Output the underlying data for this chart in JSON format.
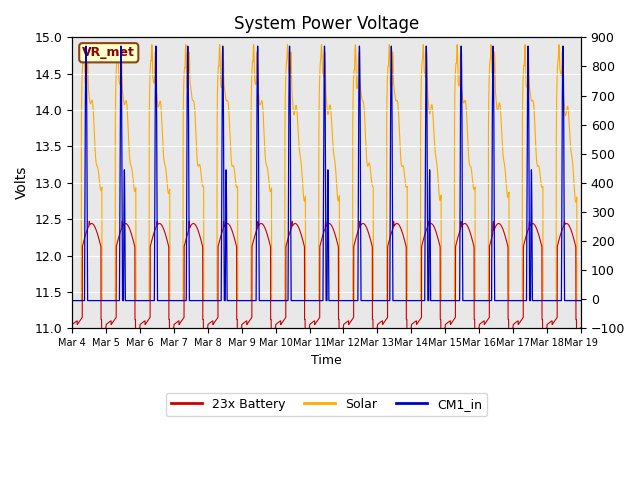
{
  "title": "System Power Voltage",
  "xlabel": "Time",
  "ylabel": "Volts",
  "ylim_left": [
    11.0,
    15.0
  ],
  "ylim_right": [
    -100,
    900
  ],
  "yticks_left": [
    11.0,
    11.5,
    12.0,
    12.5,
    13.0,
    13.5,
    14.0,
    14.5,
    15.0
  ],
  "yticks_right": [
    -100,
    0,
    100,
    200,
    300,
    400,
    500,
    600,
    700,
    800,
    900
  ],
  "xtick_labels": [
    "Mar 4",
    "Mar 5",
    "Mar 6",
    "Mar 7",
    "Mar 8",
    "Mar 9",
    "Mar 10",
    "Mar 11",
    "Mar 12",
    "Mar 13",
    "Mar 14",
    "Mar 15",
    "Mar 16",
    "Mar 17",
    "Mar 18",
    "Mar 19"
  ],
  "legend_labels": [
    "23x Battery",
    "Solar",
    "CM1_in"
  ],
  "legend_colors": [
    "#cc0000",
    "#ffaa00",
    "#0000cc"
  ],
  "vr_met_label": "VR_met",
  "bg_color": "#e8e8e8",
  "line_battery": "#cc0000",
  "line_solar": "#ffaa00",
  "line_cm1": "#0000cc",
  "n_days": 15
}
